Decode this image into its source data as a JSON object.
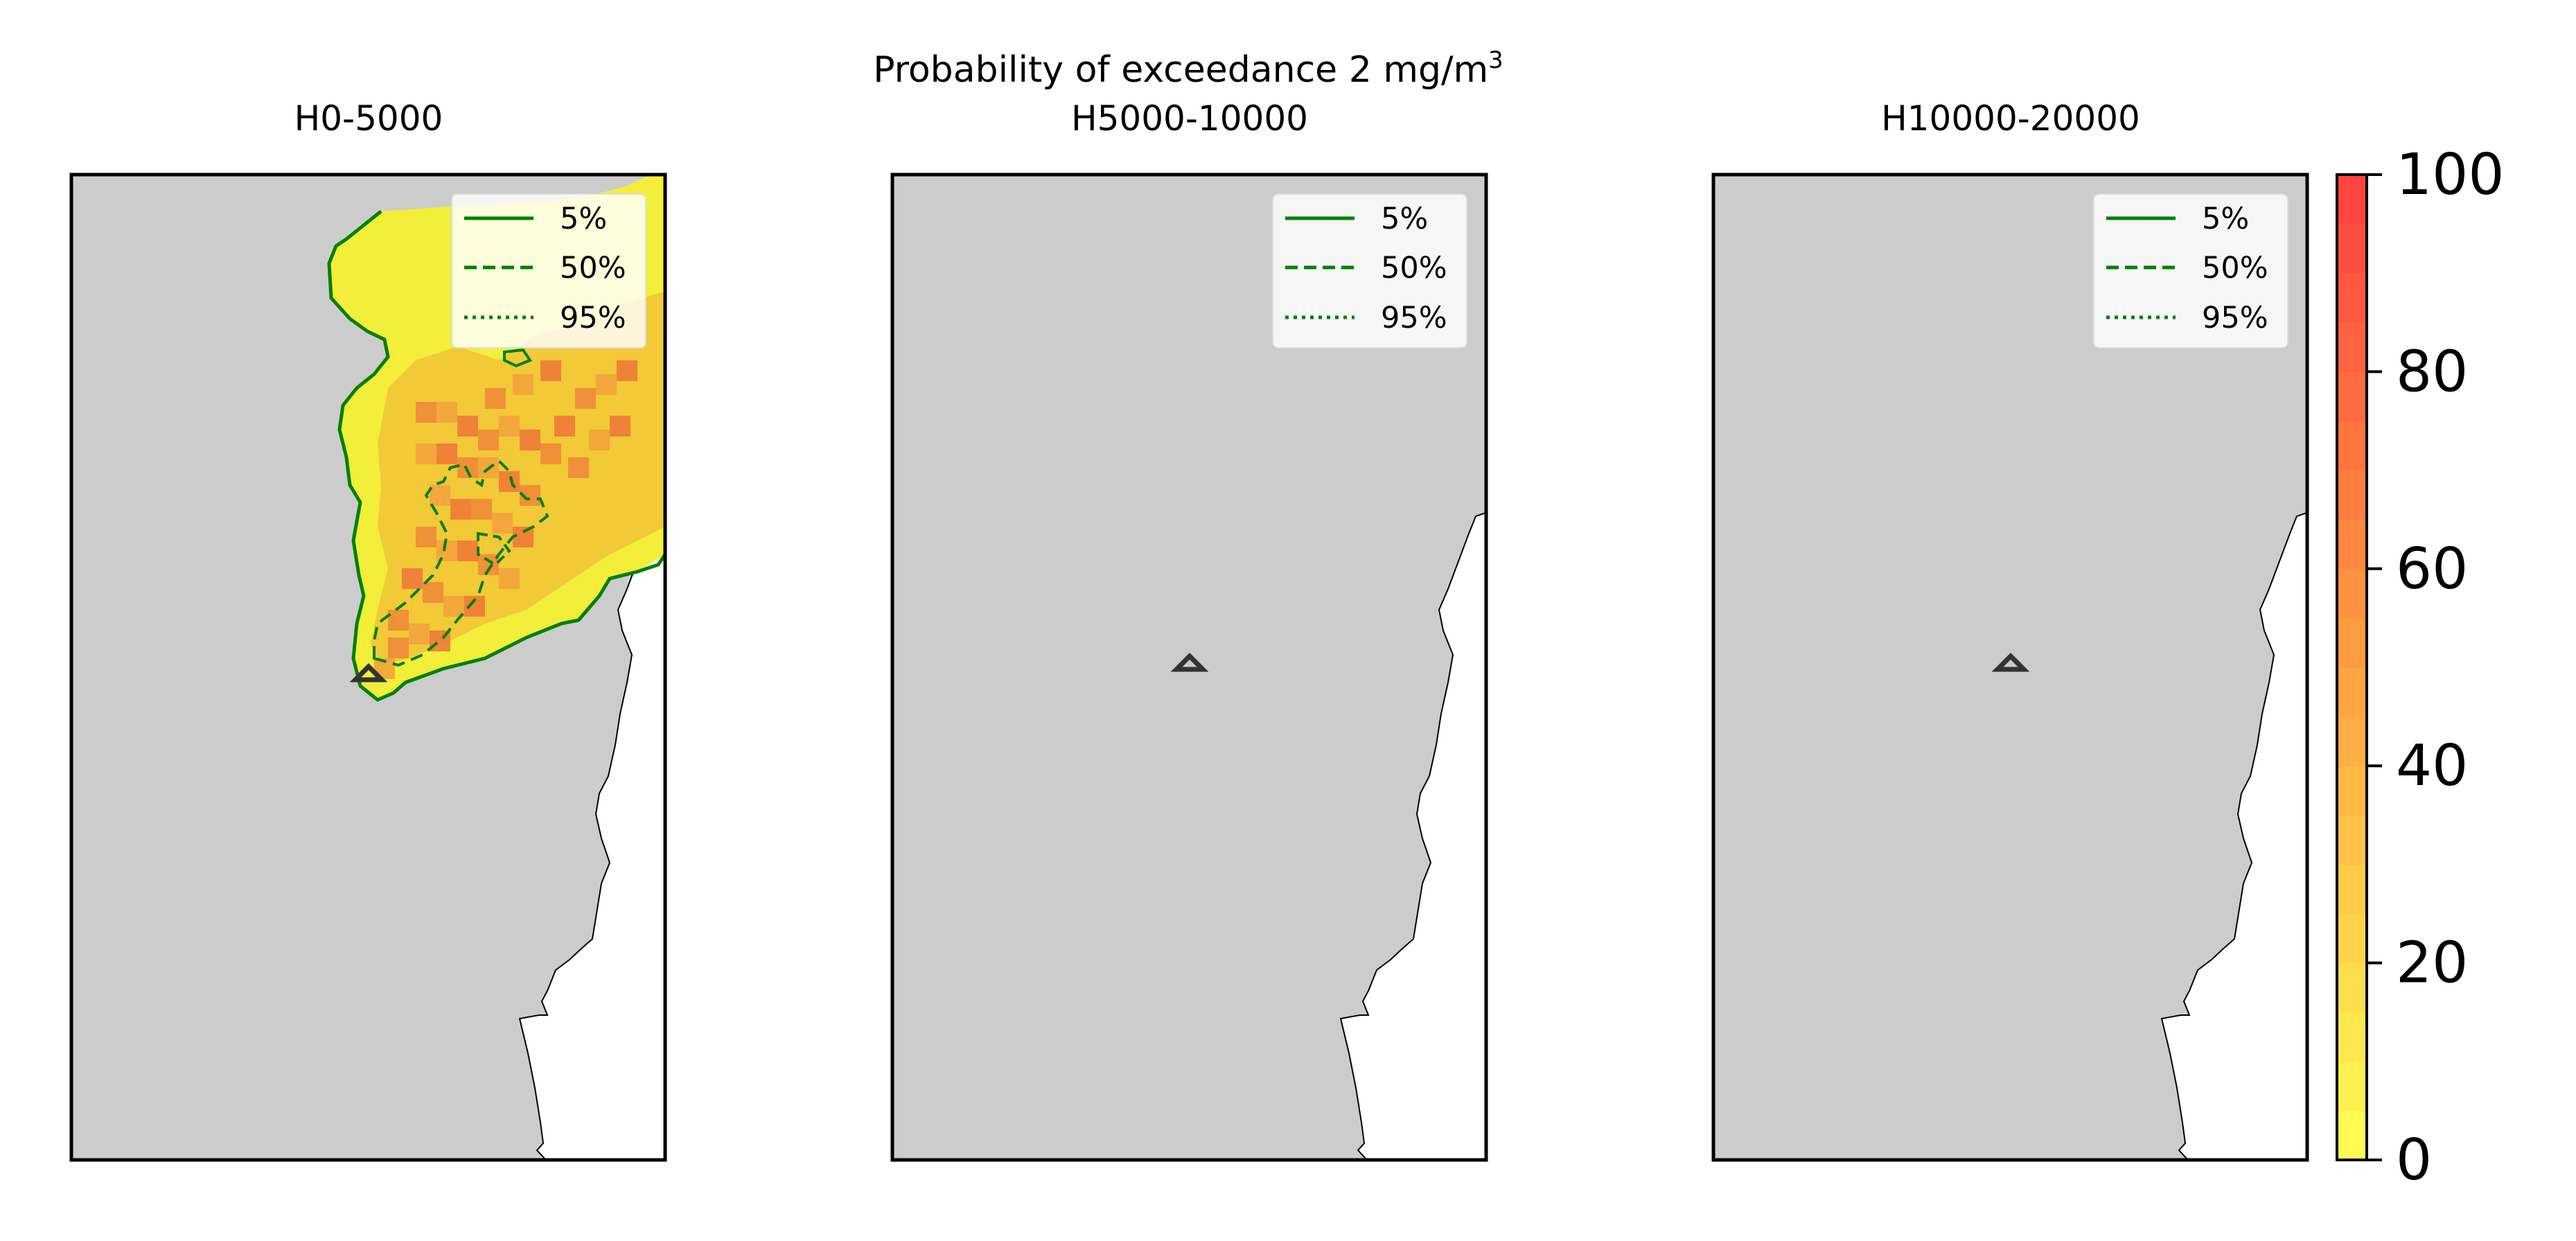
{
  "figure": {
    "title_main": "Probability of exceedance 2 mg/m",
    "title_sup": "3"
  },
  "panels": [
    {
      "title": "H0-5000"
    },
    {
      "title": "H5000-10000"
    },
    {
      "title": "H10000-20000"
    }
  ],
  "legend": {
    "items": [
      {
        "label": "5%",
        "style": "solid"
      },
      {
        "label": "50%",
        "style": "dashed"
      },
      {
        "label": "95%",
        "style": "dotted"
      }
    ]
  },
  "colorbar": {
    "ticks": [
      "0",
      "20",
      "40",
      "60",
      "80",
      "100"
    ],
    "range": [
      0,
      100
    ],
    "colors": {
      "low": "#ffff55",
      "mid": "#ffa040",
      "high": "#ff4040"
    }
  },
  "colors": {
    "land": "#cccccc",
    "sea": "#ffffff",
    "contour": "#008000",
    "marker": "#333333",
    "frame": "#000000"
  },
  "chart_data": {
    "type": "heatmap",
    "title": "Probability of exceedance 2 mg/m3",
    "panels": [
      "H0-5000",
      "H5000-10000",
      "H10000-20000"
    ],
    "contour_levels": [
      "5%",
      "50%",
      "95%"
    ],
    "colorbar_range": [
      0,
      100
    ],
    "colorbar_ticks": [
      0,
      20,
      40,
      60,
      80,
      100
    ]
  }
}
